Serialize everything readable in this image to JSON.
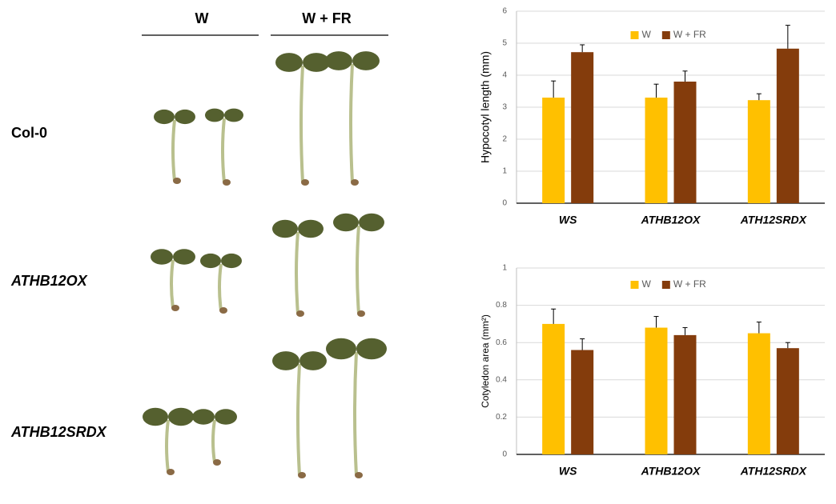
{
  "photo_panel": {
    "columns": [
      "W",
      "W + FR"
    ],
    "rows": [
      "Col-0",
      "ATHB12OX",
      "ATHB12SRDX"
    ]
  },
  "chart_data": [
    {
      "type": "bar",
      "y_label": "Hypocotyl length (mm)",
      "categories": [
        "WS",
        "ATHB12OX",
        "ATH12SRDX"
      ],
      "series": [
        {
          "name": "W",
          "color": "#ffc000",
          "values": [
            3.3,
            3.3,
            3.22
          ],
          "errors": [
            0.52,
            0.42,
            0.2
          ]
        },
        {
          "name": "W + FR",
          "color": "#843c0c",
          "values": [
            4.72,
            3.8,
            4.83
          ],
          "errors": [
            0.23,
            0.33,
            0.73
          ]
        }
      ],
      "ylim": [
        0,
        6
      ],
      "yticks": [
        0,
        1,
        2,
        3,
        4,
        5,
        6
      ],
      "grid": true,
      "legend": "top"
    },
    {
      "type": "bar",
      "y_label": "Cotyledon area (mm²)",
      "categories": [
        "WS",
        "ATHB12OX",
        "ATH12SRDX"
      ],
      "series": [
        {
          "name": "W",
          "color": "#ffc000",
          "values": [
            0.7,
            0.68,
            0.65
          ],
          "errors": [
            0.08,
            0.06,
            0.06
          ]
        },
        {
          "name": "W + FR",
          "color": "#843c0c",
          "values": [
            0.56,
            0.64,
            0.57
          ],
          "errors": [
            0.06,
            0.04,
            0.03
          ]
        }
      ],
      "ylim": [
        0,
        1
      ],
      "yticks": [
        0,
        0.2,
        0.4,
        0.6,
        0.8,
        1
      ],
      "grid": true,
      "legend": "top"
    }
  ]
}
